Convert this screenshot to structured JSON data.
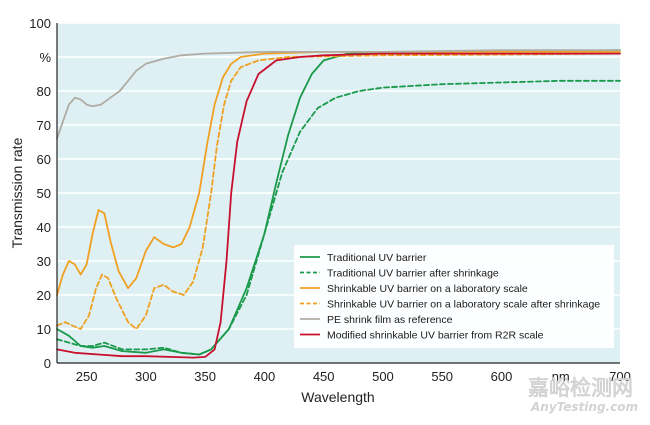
{
  "chart_data": {
    "type": "line",
    "xlabel": "Wavelength",
    "ylabel": "Transmission rate",
    "xlim": [
      225,
      700
    ],
    "ylim": [
      0,
      100
    ],
    "x_ticks": [
      250,
      300,
      350,
      400,
      450,
      500,
      550,
      600,
      650,
      700
    ],
    "x_tick_labels": [
      "250",
      "300",
      "350",
      "400",
      "450",
      "500",
      "550",
      "600",
      "nm",
      "700"
    ],
    "y_ticks": [
      0,
      10,
      20,
      30,
      40,
      50,
      60,
      70,
      80,
      90,
      100
    ],
    "y_tick_labels": [
      "0",
      "10",
      "20",
      "30",
      "40",
      "50",
      "60",
      "70",
      "80",
      "%",
      "100"
    ],
    "grid": "horizontal",
    "legend_position": "bottom-right",
    "plot_background": "#dff0f5",
    "series": [
      {
        "name": "Traditional UV barrier",
        "color": "#1a9a4a",
        "dash": "solid",
        "points": [
          [
            225,
            10
          ],
          [
            235,
            8
          ],
          [
            245,
            5
          ],
          [
            255,
            4.5
          ],
          [
            265,
            5
          ],
          [
            280,
            3.5
          ],
          [
            300,
            3
          ],
          [
            315,
            4
          ],
          [
            330,
            3
          ],
          [
            345,
            2.5
          ],
          [
            355,
            4
          ],
          [
            370,
            10
          ],
          [
            385,
            22
          ],
          [
            400,
            38
          ],
          [
            410,
            53
          ],
          [
            420,
            67
          ],
          [
            430,
            78
          ],
          [
            440,
            85
          ],
          [
            450,
            89
          ],
          [
            470,
            91
          ],
          [
            500,
            91.5
          ],
          [
            550,
            91.5
          ],
          [
            600,
            91.7
          ],
          [
            650,
            91.8
          ],
          [
            700,
            92
          ]
        ]
      },
      {
        "name": "Traditional UV barrier after shrinkage",
        "color": "#1a9a4a",
        "dash": "dashed",
        "points": [
          [
            225,
            7
          ],
          [
            235,
            6
          ],
          [
            245,
            5
          ],
          [
            255,
            5
          ],
          [
            265,
            6
          ],
          [
            280,
            4
          ],
          [
            300,
            4
          ],
          [
            315,
            4.5
          ],
          [
            330,
            3
          ],
          [
            345,
            2.5
          ],
          [
            355,
            4
          ],
          [
            370,
            10
          ],
          [
            385,
            20
          ],
          [
            400,
            38
          ],
          [
            415,
            56
          ],
          [
            430,
            68
          ],
          [
            445,
            75
          ],
          [
            460,
            78
          ],
          [
            480,
            80
          ],
          [
            500,
            81
          ],
          [
            550,
            82
          ],
          [
            600,
            82.5
          ],
          [
            650,
            83
          ],
          [
            700,
            83
          ]
        ]
      },
      {
        "name": "Shrinkable UV barrier on a laboratory scale",
        "color": "#f0a020",
        "dash": "solid",
        "points": [
          [
            225,
            20
          ],
          [
            230,
            26
          ],
          [
            235,
            30
          ],
          [
            240,
            29
          ],
          [
            245,
            26
          ],
          [
            250,
            29
          ],
          [
            255,
            38
          ],
          [
            260,
            45
          ],
          [
            265,
            44
          ],
          [
            270,
            36
          ],
          [
            277,
            27
          ],
          [
            285,
            22
          ],
          [
            292,
            25
          ],
          [
            300,
            33
          ],
          [
            307,
            37
          ],
          [
            315,
            35
          ],
          [
            323,
            34
          ],
          [
            330,
            35
          ],
          [
            337,
            40
          ],
          [
            345,
            50
          ],
          [
            352,
            65
          ],
          [
            358,
            76
          ],
          [
            365,
            84
          ],
          [
            372,
            88
          ],
          [
            380,
            90
          ],
          [
            400,
            91
          ],
          [
            450,
            91.5
          ],
          [
            500,
            91.5
          ],
          [
            600,
            91.5
          ],
          [
            700,
            91.5
          ]
        ]
      },
      {
        "name": "Shrinkable UV barrier on a laboratory scale after shrinkage",
        "color": "#f0a020",
        "dash": "dashed",
        "points": [
          [
            225,
            11
          ],
          [
            232,
            12
          ],
          [
            238,
            11
          ],
          [
            245,
            10
          ],
          [
            252,
            14
          ],
          [
            258,
            22
          ],
          [
            263,
            26
          ],
          [
            268,
            25
          ],
          [
            275,
            19
          ],
          [
            285,
            12
          ],
          [
            292,
            10
          ],
          [
            300,
            14
          ],
          [
            307,
            22
          ],
          [
            315,
            23
          ],
          [
            323,
            21
          ],
          [
            332,
            20
          ],
          [
            340,
            24
          ],
          [
            348,
            34
          ],
          [
            355,
            50
          ],
          [
            360,
            64
          ],
          [
            366,
            76
          ],
          [
            372,
            83
          ],
          [
            380,
            87
          ],
          [
            395,
            89
          ],
          [
            420,
            90
          ],
          [
            500,
            90.5
          ],
          [
            600,
            90.7
          ],
          [
            700,
            91
          ]
        ]
      },
      {
        "name": "PE shrink film as reference",
        "color": "#b0aca4",
        "dash": "solid",
        "points": [
          [
            225,
            66
          ],
          [
            230,
            71
          ],
          [
            235,
            76
          ],
          [
            240,
            78
          ],
          [
            245,
            77.5
          ],
          [
            250,
            76
          ],
          [
            255,
            75.5
          ],
          [
            262,
            76
          ],
          [
            270,
            78
          ],
          [
            278,
            80
          ],
          [
            285,
            83
          ],
          [
            292,
            86
          ],
          [
            300,
            88
          ],
          [
            315,
            89.5
          ],
          [
            330,
            90.5
          ],
          [
            350,
            91
          ],
          [
            400,
            91.5
          ],
          [
            450,
            91.5
          ],
          [
            500,
            91.5
          ],
          [
            600,
            92
          ],
          [
            700,
            92
          ]
        ]
      },
      {
        "name": "Modified shrinkable UV barrier from R2R scale",
        "color": "#c8102e",
        "dash": "solid",
        "points": [
          [
            225,
            4
          ],
          [
            240,
            3
          ],
          [
            260,
            2.5
          ],
          [
            280,
            2
          ],
          [
            300,
            2
          ],
          [
            320,
            1.8
          ],
          [
            340,
            1.6
          ],
          [
            350,
            1.8
          ],
          [
            358,
            4
          ],
          [
            363,
            12
          ],
          [
            368,
            30
          ],
          [
            372,
            50
          ],
          [
            377,
            65
          ],
          [
            385,
            77
          ],
          [
            395,
            85
          ],
          [
            410,
            89
          ],
          [
            430,
            90
          ],
          [
            450,
            90.5
          ],
          [
            500,
            91
          ],
          [
            600,
            91
          ],
          [
            700,
            91
          ]
        ]
      }
    ]
  },
  "watermark": {
    "cn": "嘉峪检测网",
    "en": "AnyTesting.com"
  }
}
